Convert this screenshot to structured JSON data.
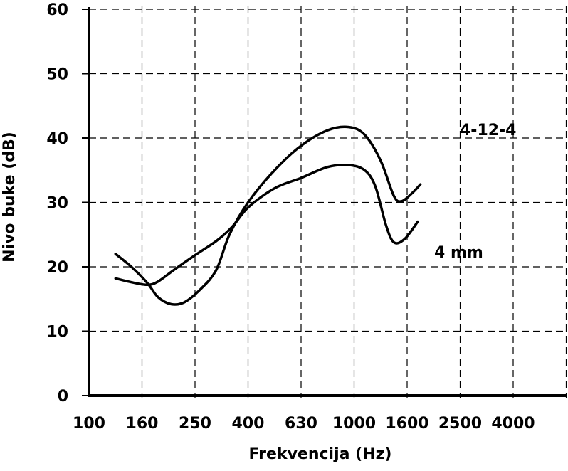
{
  "chart_data": {
    "type": "line",
    "title": "",
    "xlabel": "Frekvencija (Hz)",
    "ylabel": "Nivo buke (dB)",
    "ylim": [
      0,
      60
    ],
    "y_ticks": [
      "0",
      "10",
      "20",
      "30",
      "40",
      "50",
      "60"
    ],
    "x_ticks": [
      "100",
      "160",
      "250",
      "400",
      "630",
      "1000",
      "1600",
      "2500",
      "4000"
    ],
    "grid": true,
    "series": [
      {
        "name": "4-12-4",
        "points": [
          [
            0.5,
            22.0
          ],
          [
            0.8,
            20.0
          ],
          [
            1.1,
            17.5
          ],
          [
            1.3,
            15.3
          ],
          [
            1.55,
            14.2
          ],
          [
            1.8,
            14.5
          ],
          [
            2.1,
            16.5
          ],
          [
            2.4,
            19.5
          ],
          [
            2.65,
            25.0
          ],
          [
            3.0,
            30.0
          ],
          [
            3.5,
            35.0
          ],
          [
            4.0,
            38.8
          ],
          [
            4.5,
            41.2
          ],
          [
            4.9,
            41.7
          ],
          [
            5.2,
            40.5
          ],
          [
            5.5,
            36.5
          ],
          [
            5.75,
            31.0
          ],
          [
            5.9,
            30.2
          ],
          [
            6.1,
            31.5
          ],
          [
            6.25,
            32.8
          ]
        ]
      },
      {
        "name": "4 mm",
        "points": [
          [
            0.5,
            18.2
          ],
          [
            0.8,
            17.6
          ],
          [
            1.1,
            17.2
          ],
          [
            1.3,
            17.7
          ],
          [
            1.6,
            19.5
          ],
          [
            2.0,
            21.8
          ],
          [
            2.4,
            24.0
          ],
          [
            2.7,
            26.2
          ],
          [
            3.0,
            29.2
          ],
          [
            3.5,
            32.2
          ],
          [
            4.0,
            33.8
          ],
          [
            4.5,
            35.5
          ],
          [
            4.9,
            35.8
          ],
          [
            5.2,
            35.0
          ],
          [
            5.4,
            32.5
          ],
          [
            5.6,
            26.5
          ],
          [
            5.75,
            23.8
          ],
          [
            5.95,
            24.3
          ],
          [
            6.2,
            27.0
          ]
        ]
      }
    ]
  }
}
